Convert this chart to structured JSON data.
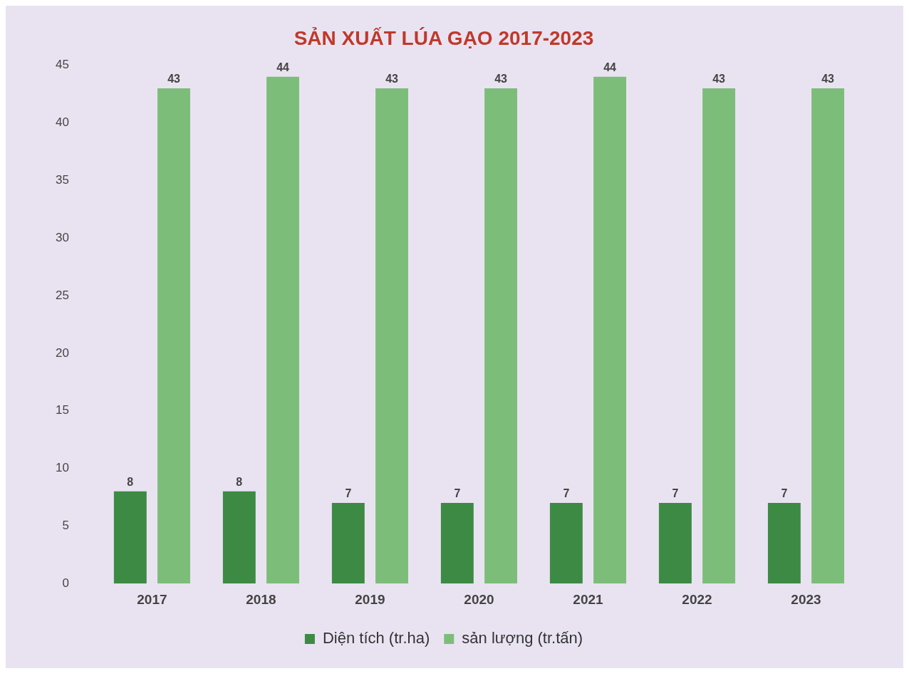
{
  "chart_data": {
    "type": "bar",
    "title": "SẢN XUẤT LÚA GẠO 2017-2023",
    "categories": [
      "2017",
      "2018",
      "2019",
      "2020",
      "2021",
      "2022",
      "2023"
    ],
    "series": [
      {
        "name": "Diện tích (tr.ha)",
        "color": "#3d8a45",
        "values": [
          8,
          8,
          7,
          7,
          7,
          7,
          7
        ]
      },
      {
        "name": "sản lượng (tr.tấn)",
        "color": "#7dbd7a",
        "values": [
          43,
          44,
          43,
          43,
          44,
          43,
          43
        ]
      }
    ],
    "ylim": [
      0,
      45
    ],
    "yticks": [
      0,
      5,
      10,
      15,
      20,
      25,
      30,
      35,
      40,
      45
    ],
    "grid": false,
    "legend": "bottom",
    "data_labels": true
  }
}
